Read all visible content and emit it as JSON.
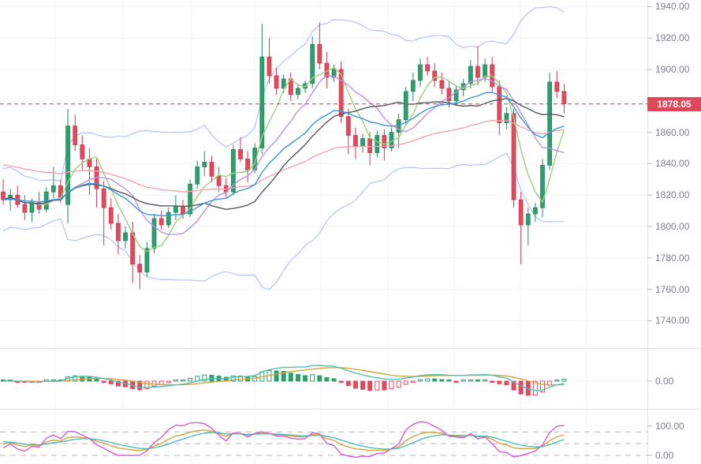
{
  "colors": {
    "background": "#ffffff",
    "grid": "#f0f3f8",
    "separator": "#e1e3eb",
    "axis_text": "#7b7f8a",
    "tick": "#b4b7c0",
    "candle_up": "#2f9e6e",
    "candle_up_border": "#268a5e",
    "candle_down": "#e2495c",
    "candle_down_border": "#cf3a4e",
    "bollinger": "#b7c8f0",
    "ma_fast_green": "#9ccf7d",
    "ma_mid_purple": "#bb93de",
    "ma_slow_dark": "#50575f",
    "ma_slow_blue": "#3a99d9",
    "ma_long_pink": "#f2a4ae",
    "macd_line": "#50c0b1",
    "macd_signal": "#d7a33e",
    "hist_up": "#2f9e6e",
    "hist_down": "#e2495c",
    "price_line": "#e0475a",
    "tag_bg": "#e0475a",
    "tag_text": "#ffffff",
    "kdj_j": "#d45cd0",
    "kdj_k": "#d7a33e",
    "kdj_d": "#4cc0b5",
    "dashed_level": "#b4b7c0"
  },
  "chart_data": {
    "type": "candlestick",
    "last_price": 1878.05,
    "last_price_label": "1878.05",
    "price_axis": {
      "min": 1740,
      "max": 1940,
      "tick_step": 20,
      "labels": [
        {
          "text": "1940.00",
          "price": 1940
        },
        {
          "text": "1920.00",
          "price": 1920
        },
        {
          "text": "1900.00",
          "price": 1900
        },
        {
          "text": "1860.00",
          "price": 1860
        },
        {
          "text": "1840.00",
          "price": 1840
        },
        {
          "text": "1820.00",
          "price": 1820
        },
        {
          "text": "1800.00",
          "price": 1800
        },
        {
          "text": "1780.00",
          "price": 1780
        },
        {
          "text": "1760.00",
          "price": 1760
        },
        {
          "text": "1740.00",
          "price": 1740
        }
      ],
      "gridline_prices": [
        1940,
        1920,
        1900,
        1880,
        1860,
        1840,
        1820,
        1800,
        1780,
        1760,
        1740
      ]
    },
    "candles": {
      "ohlc": [
        [
          1822,
          1830,
          1814,
          1817
        ],
        [
          1817,
          1824,
          1810,
          1820
        ],
        [
          1820,
          1826,
          1812,
          1814
        ],
        [
          1814,
          1820,
          1804,
          1809
        ],
        [
          1809,
          1818,
          1803,
          1815
        ],
        [
          1815,
          1822,
          1808,
          1811
        ],
        [
          1811,
          1825,
          1809,
          1822
        ],
        [
          1822,
          1838,
          1818,
          1826
        ],
        [
          1826,
          1830,
          1815,
          1818
        ],
        [
          1814,
          1875,
          1802,
          1864
        ],
        [
          1864,
          1871,
          1848,
          1852
        ],
        [
          1852,
          1858,
          1836,
          1843
        ],
        [
          1843,
          1850,
          1820,
          1838
        ],
        [
          1838,
          1843,
          1812,
          1824
        ],
        [
          1824,
          1829,
          1788,
          1812
        ],
        [
          1812,
          1818,
          1798,
          1802
        ],
        [
          1802,
          1808,
          1782,
          1791
        ],
        [
          1791,
          1800,
          1786,
          1796
        ],
        [
          1796,
          1803,
          1764,
          1776
        ],
        [
          1776,
          1782,
          1760,
          1771
        ],
        [
          1771,
          1790,
          1768,
          1786
        ],
        [
          1786,
          1808,
          1783,
          1805
        ],
        [
          1805,
          1810,
          1798,
          1801
        ],
        [
          1801,
          1812,
          1799,
          1809
        ],
        [
          1809,
          1820,
          1804,
          1813
        ],
        [
          1813,
          1817,
          1805,
          1808
        ],
        [
          1808,
          1830,
          1806,
          1827
        ],
        [
          1827,
          1842,
          1824,
          1838
        ],
        [
          1838,
          1848,
          1832,
          1841
        ],
        [
          1841,
          1845,
          1828,
          1832
        ],
        [
          1832,
          1838,
          1822,
          1826
        ],
        [
          1826,
          1831,
          1818,
          1822
        ],
        [
          1822,
          1852,
          1820,
          1849
        ],
        [
          1849,
          1857,
          1841,
          1843
        ],
        [
          1843,
          1848,
          1828,
          1836
        ],
        [
          1836,
          1853,
          1834,
          1850
        ],
        [
          1850,
          1929,
          1846,
          1908
        ],
        [
          1908,
          1920,
          1891,
          1896
        ],
        [
          1896,
          1901,
          1884,
          1888
        ],
        [
          1888,
          1897,
          1885,
          1894
        ],
        [
          1894,
          1898,
          1880,
          1884
        ],
        [
          1884,
          1891,
          1881,
          1888
        ],
        [
          1888,
          1893,
          1885,
          1891
        ],
        [
          1891,
          1921,
          1888,
          1916
        ],
        [
          1916,
          1930,
          1900,
          1904
        ],
        [
          1904,
          1911,
          1888,
          1895
        ],
        [
          1895,
          1903,
          1892,
          1900
        ],
        [
          1900,
          1905,
          1866,
          1870
        ],
        [
          1870,
          1875,
          1846,
          1858
        ],
        [
          1858,
          1863,
          1843,
          1851
        ],
        [
          1851,
          1859,
          1847,
          1856
        ],
        [
          1856,
          1860,
          1839,
          1847
        ],
        [
          1847,
          1861,
          1844,
          1858
        ],
        [
          1858,
          1862,
          1842,
          1850
        ],
        [
          1850,
          1863,
          1848,
          1860
        ],
        [
          1860,
          1872,
          1850,
          1868
        ],
        [
          1868,
          1889,
          1864,
          1886
        ],
        [
          1886,
          1898,
          1880,
          1893
        ],
        [
          1893,
          1907,
          1889,
          1903
        ],
        [
          1903,
          1908,
          1896,
          1899
        ],
        [
          1899,
          1904,
          1889,
          1893
        ],
        [
          1893,
          1898,
          1884,
          1888
        ],
        [
          1888,
          1893,
          1876,
          1880
        ],
        [
          1880,
          1890,
          1877,
          1887
        ],
        [
          1887,
          1894,
          1883,
          1891
        ],
        [
          1891,
          1906,
          1888,
          1902
        ],
        [
          1902,
          1915,
          1890,
          1895
        ],
        [
          1895,
          1907,
          1892,
          1903
        ],
        [
          1903,
          1908,
          1886,
          1889
        ],
        [
          1889,
          1893,
          1858,
          1866
        ],
        [
          1866,
          1876,
          1862,
          1872
        ],
        [
          1872,
          1875,
          1812,
          1817
        ],
        [
          1817,
          1822,
          1776,
          1801
        ],
        [
          1801,
          1812,
          1788,
          1808
        ],
        [
          1808,
          1815,
          1803,
          1812
        ],
        [
          1812,
          1843,
          1806,
          1839
        ],
        [
          1839,
          1898,
          1836,
          1892
        ],
        [
          1892,
          1899,
          1882,
          1886
        ],
        [
          1886,
          1891,
          1872,
          1878.05
        ]
      ]
    },
    "indicators": {
      "bollinger": {
        "period": 20,
        "stdev_mult": 2
      },
      "moving_averages": [
        {
          "name": "fast-green",
          "kind": "sma",
          "period": 5
        },
        {
          "name": "mid-purple",
          "kind": "sma",
          "period": 10
        },
        {
          "name": "slow-dark",
          "kind": "sma",
          "period": 20
        },
        {
          "name": "slow-blue",
          "kind": "ema",
          "period": 20
        },
        {
          "name": "long-pink",
          "kind": "ema",
          "period": 55,
          "seed": 1840
        }
      ],
      "macd": {
        "fast": 12,
        "slow": 26,
        "signal": 9,
        "axis_label": "0.00"
      },
      "kdj": {
        "period": 9,
        "axis_labels": [
          {
            "text": "100.00",
            "value": 100
          },
          {
            "text": "0.00",
            "value": 0
          }
        ],
        "dashed_levels": [
          80,
          40,
          0
        ]
      }
    }
  }
}
